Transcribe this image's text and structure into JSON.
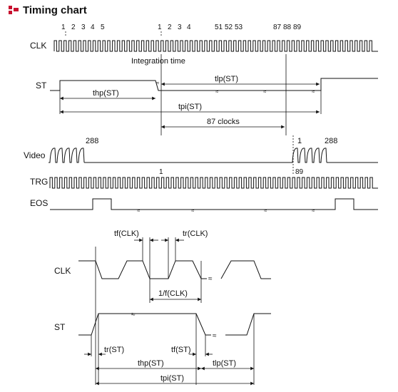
{
  "header": {
    "title": "Timing chart"
  },
  "top": {
    "labels": {
      "clk": "CLK",
      "st": "ST",
      "video": "Video",
      "trg": "TRG",
      "eos": "EOS"
    },
    "clk_counts_1": [
      "1",
      "2",
      "3",
      "4",
      "5"
    ],
    "clk_counts_2": [
      "1",
      "2",
      "3",
      "4"
    ],
    "clk_counts_3": [
      "51",
      "52",
      "53"
    ],
    "clk_counts_4": [
      "87",
      "88",
      "89"
    ],
    "integration_time": "Integration time",
    "tlp": "tlp(ST)",
    "thp": "thp(ST)",
    "tpi": "tpi(ST)",
    "clocks87": "87 clocks",
    "video_288_left": "288",
    "video_1": "1",
    "video_288_right": "288",
    "trg_1": "1",
    "trg_89": "89"
  },
  "detail": {
    "labels": {
      "clk": "CLK",
      "st": "ST"
    },
    "tf_clk": "tf(CLK)",
    "tr_clk": "tr(CLK)",
    "freq": "1/f(CLK)",
    "tr_st": "tr(ST)",
    "tf_st": "tf(ST)",
    "thp": "thp(ST)",
    "tlp": "tlp(ST)",
    "tpi": "tpi(ST)"
  }
}
